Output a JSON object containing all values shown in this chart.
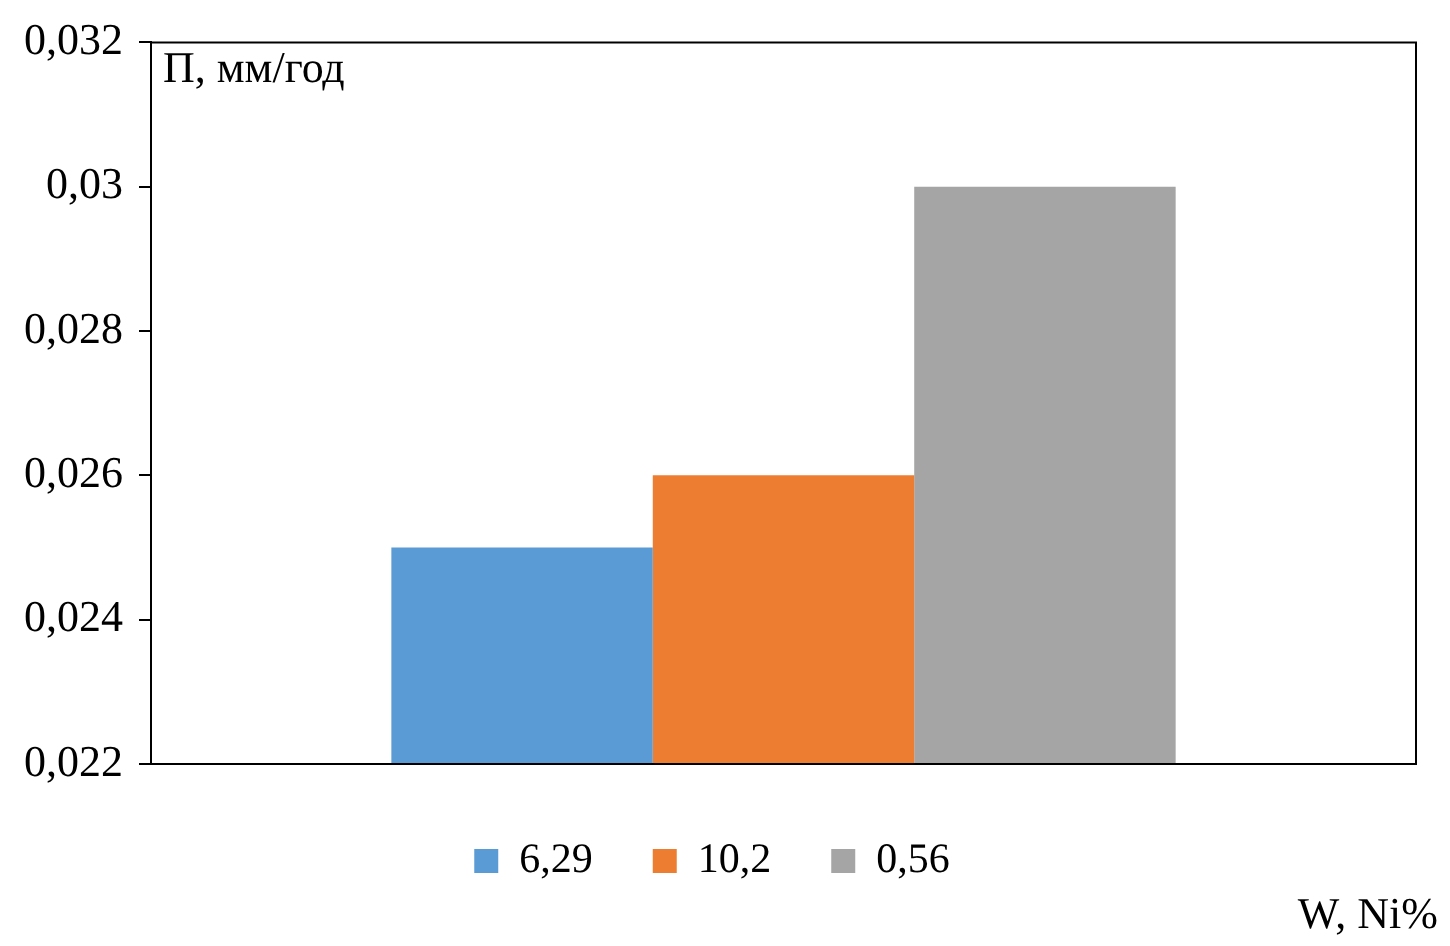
{
  "chart_data": {
    "type": "bar",
    "ylabel": "П, мм/год",
    "xlabel": "W, Ni%",
    "categories": [
      null
    ],
    "series": [
      {
        "name": "6,29",
        "color": "#5b9bd5",
        "values": [
          0.025
        ]
      },
      {
        "name": "10,2",
        "color": "#ed7d31",
        "values": [
          0.026
        ]
      },
      {
        "name": "0,56",
        "color": "#a5a5a5",
        "values": [
          0.03
        ]
      }
    ],
    "ylim": [
      0.022,
      0.032
    ],
    "yticks": [
      {
        "value": 0.022,
        "label": "0,022"
      },
      {
        "value": 0.024,
        "label": "0,024"
      },
      {
        "value": 0.026,
        "label": "0,026"
      },
      {
        "value": 0.028,
        "label": "0,028"
      },
      {
        "value": 0.03,
        "label": "0,03"
      },
      {
        "value": 0.032,
        "label": "0,032"
      }
    ],
    "grid": false,
    "legend": "bottom"
  }
}
